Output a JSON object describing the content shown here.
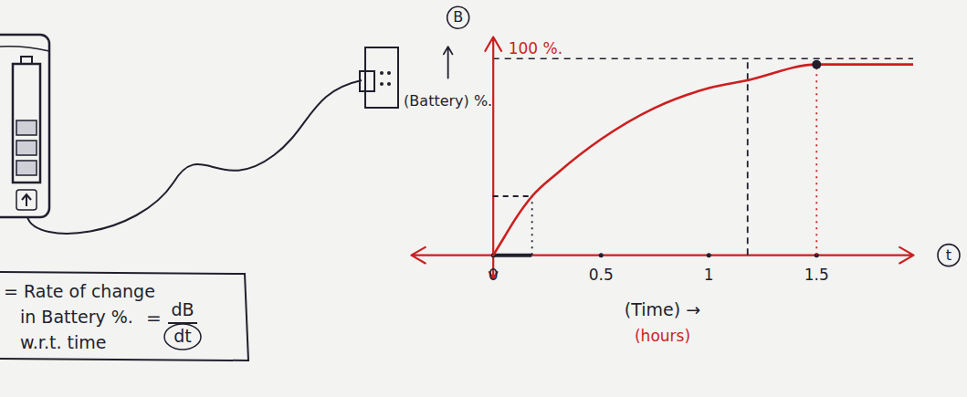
{
  "chart_data": {
    "type": "line",
    "y_symbol": "B",
    "y_label": "(Battery) %.",
    "x_symbol": "t",
    "x_label": "(Time) →",
    "x_unit": "(hours)",
    "x": [
      0,
      0.05,
      0.1,
      0.18,
      0.3,
      0.5,
      0.75,
      1,
      1.18,
      1.5,
      1.75,
      1.95
    ],
    "values": [
      0,
      9,
      18,
      30,
      42,
      59,
      75,
      85,
      89,
      97,
      97,
      97
    ],
    "color": "#cc1f1f",
    "xlim": [
      -0.38,
      1.95
    ],
    "xticks": [
      0,
      0.5,
      1,
      1.5
    ],
    "ylim": [
      -12,
      111
    ],
    "yticks": [
      {
        "value": 100,
        "label": "100 %."
      }
    ],
    "guides": [
      {
        "x": 0.18,
        "y": 30,
        "line_style": "dotted",
        "color": "#1f1f2e",
        "horizontal": true
      },
      {
        "x": 1.18,
        "y": 100,
        "line_style": "dashed",
        "color": "#1f1f2e",
        "horizontal": false
      },
      {
        "x": 1.5,
        "y": 97,
        "line_style": "dotted",
        "color": "#cc1f1f",
        "horizontal": false,
        "marker": "dot"
      }
    ],
    "annotation": {
      "lines": [
        "= Rate of change",
        "in Battery %.",
        "w.r.t. time"
      ],
      "equals": "=",
      "numerator": "dB",
      "denominator": "dt"
    }
  }
}
